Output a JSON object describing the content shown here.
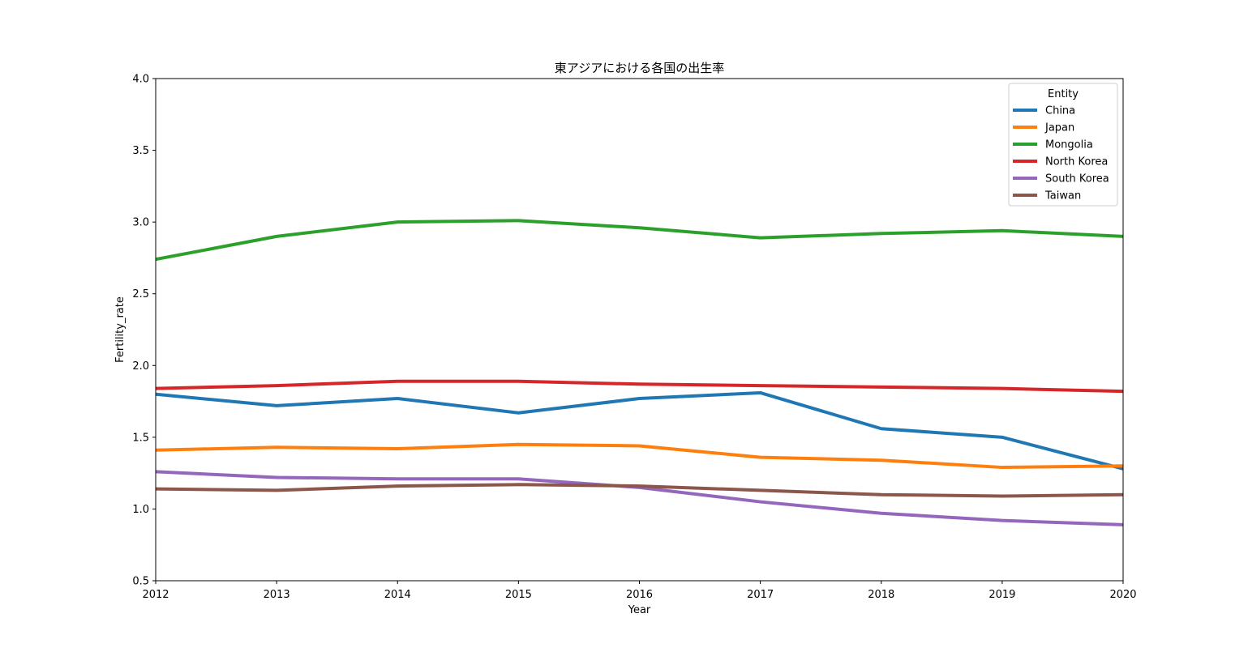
{
  "chart_data": {
    "type": "line",
    "title": "東アジアにおける各国の出生率",
    "xlabel": "Year",
    "ylabel": "Fertility_rate",
    "x": [
      2012,
      2013,
      2014,
      2015,
      2016,
      2017,
      2018,
      2019,
      2020
    ],
    "xlim": [
      2012,
      2020
    ],
    "ylim": [
      0.5,
      4.0
    ],
    "x_ticks": [
      "2012",
      "2013",
      "2014",
      "2015",
      "2016",
      "2017",
      "2018",
      "2019",
      "2020"
    ],
    "y_ticks": [
      "0.5",
      "1.0",
      "1.5",
      "2.0",
      "2.5",
      "3.0",
      "3.5",
      "4.0"
    ],
    "grid": false,
    "legend": {
      "title": "Entity",
      "position": "top-right"
    },
    "series": [
      {
        "name": "China",
        "color": "#1f77b4",
        "values": [
          1.8,
          1.72,
          1.77,
          1.67,
          1.77,
          1.81,
          1.56,
          1.5,
          1.28
        ]
      },
      {
        "name": "Japan",
        "color": "#ff7f0e",
        "values": [
          1.41,
          1.43,
          1.42,
          1.45,
          1.44,
          1.36,
          1.34,
          1.29,
          1.3
        ]
      },
      {
        "name": "Mongolia",
        "color": "#2ca02c",
        "values": [
          2.74,
          2.9,
          3.0,
          3.01,
          2.96,
          2.89,
          2.92,
          2.94,
          2.9
        ]
      },
      {
        "name": "North Korea",
        "color": "#d62728",
        "values": [
          1.84,
          1.86,
          1.89,
          1.89,
          1.87,
          1.86,
          1.85,
          1.84,
          1.82
        ]
      },
      {
        "name": "South Korea",
        "color": "#9467bd",
        "values": [
          1.26,
          1.22,
          1.21,
          1.21,
          1.15,
          1.05,
          0.97,
          0.92,
          0.89
        ]
      },
      {
        "name": "Taiwan",
        "color": "#8c564b",
        "values": [
          1.14,
          1.13,
          1.16,
          1.17,
          1.16,
          1.13,
          1.1,
          1.09,
          1.1
        ]
      }
    ]
  }
}
